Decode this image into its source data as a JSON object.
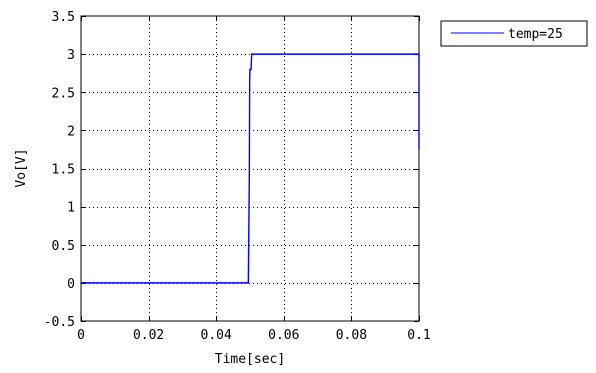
{
  "chart_data": {
    "type": "line",
    "title": "",
    "xlabel": "Time[sec]",
    "ylabel": "Vo[V]",
    "xlim": [
      0,
      0.1
    ],
    "ylim": [
      -0.5,
      3.5
    ],
    "x_ticks": [
      0,
      0.02,
      0.04,
      0.06,
      0.08,
      0.1
    ],
    "x_tick_labels": [
      "0",
      "0.02",
      "0.04",
      "0.06",
      "0.08",
      "0.1"
    ],
    "y_ticks": [
      -0.5,
      0,
      0.5,
      1,
      1.5,
      2,
      2.5,
      3,
      3.5
    ],
    "y_tick_labels": [
      "-0.5",
      "0",
      "0.5",
      "1",
      "1.5",
      "2",
      "2.5",
      "3",
      "3.5"
    ],
    "grid": true,
    "legend_position": "outside-top-right",
    "series": [
      {
        "name": "temp=25",
        "color": "#0000ff",
        "x": [
          0,
          0.0495,
          0.0498,
          0.0499,
          0.05,
          0.0503,
          0.0505,
          0.06,
          0.08,
          0.1,
          0.1
        ],
        "y": [
          0,
          0,
          1.4,
          2.7,
          2.8,
          2.8,
          3.0,
          3.0,
          3.0,
          3.0,
          1.75
        ]
      }
    ]
  }
}
